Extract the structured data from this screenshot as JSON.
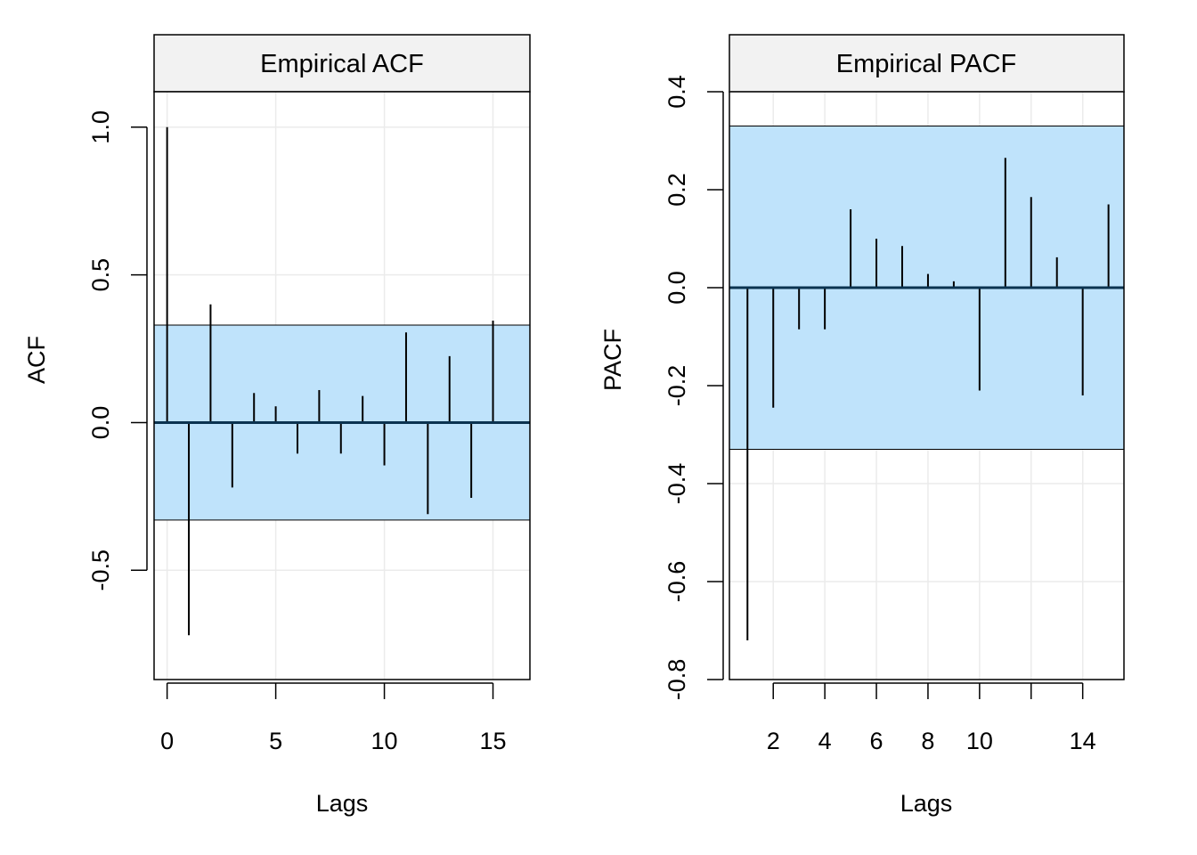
{
  "chart_data": [
    {
      "type": "bar",
      "subtype": "acf-stem",
      "title": "Empirical ACF",
      "xlabel": "Lags",
      "ylabel": "ACF",
      "xlim": [
        -0.6,
        16.7
      ],
      "ylim": [
        -0.87,
        1.12
      ],
      "xticks": [
        0,
        5,
        10,
        15
      ],
      "yticks": [
        -0.5,
        0.0,
        0.5,
        1.0
      ],
      "ytick_labels": [
        "-0.5",
        "0.0",
        "0.5",
        "1.0"
      ],
      "x_grid": [
        0,
        5,
        10,
        15
      ],
      "y_grid": [
        -0.5,
        0.0,
        0.5,
        1.0
      ],
      "grid": true,
      "confidence_band": [
        -0.33,
        0.33
      ],
      "band_color": "#bfe3fb",
      "x": [
        0,
        1,
        2,
        3,
        4,
        5,
        6,
        7,
        8,
        9,
        10,
        11,
        12,
        13,
        14,
        15
      ],
      "values": [
        1.0,
        -0.72,
        0.4,
        -0.22,
        0.1,
        0.055,
        -0.105,
        0.11,
        -0.105,
        0.09,
        -0.145,
        0.305,
        -0.31,
        0.225,
        -0.255,
        0.345
      ]
    },
    {
      "type": "bar",
      "subtype": "acf-stem",
      "title": "Empirical PACF",
      "xlabel": "Lags",
      "ylabel": "PACF",
      "xlim": [
        0.3,
        15.6
      ],
      "ylim": [
        -0.8,
        0.4
      ],
      "xticks": [
        2,
        4,
        6,
        8,
        10,
        12,
        14
      ],
      "xtick_labels": [
        "2",
        "4",
        "6",
        "8",
        "10",
        "",
        "14"
      ],
      "yticks": [
        -0.8,
        -0.6,
        -0.4,
        -0.2,
        0.0,
        0.2,
        0.4
      ],
      "ytick_labels": [
        "-0.8",
        "-0.6",
        "-0.4",
        "-0.2",
        "0.0",
        "0.2",
        "0.4"
      ],
      "x_grid": [
        2,
        4,
        6,
        8,
        10,
        12,
        14
      ],
      "y_grid": [
        -0.8,
        -0.6,
        -0.4,
        -0.2,
        0.0,
        0.2,
        0.4
      ],
      "grid": true,
      "confidence_band": [
        -0.33,
        0.33
      ],
      "band_color": "#bfe3fb",
      "x": [
        1,
        2,
        3,
        4,
        5,
        6,
        7,
        8,
        9,
        10,
        11,
        12,
        13,
        14,
        15
      ],
      "values": [
        -0.72,
        -0.245,
        -0.085,
        -0.085,
        0.16,
        0.1,
        0.085,
        0.028,
        0.013,
        -0.21,
        0.265,
        0.185,
        0.062,
        -0.22,
        0.17
      ]
    }
  ]
}
